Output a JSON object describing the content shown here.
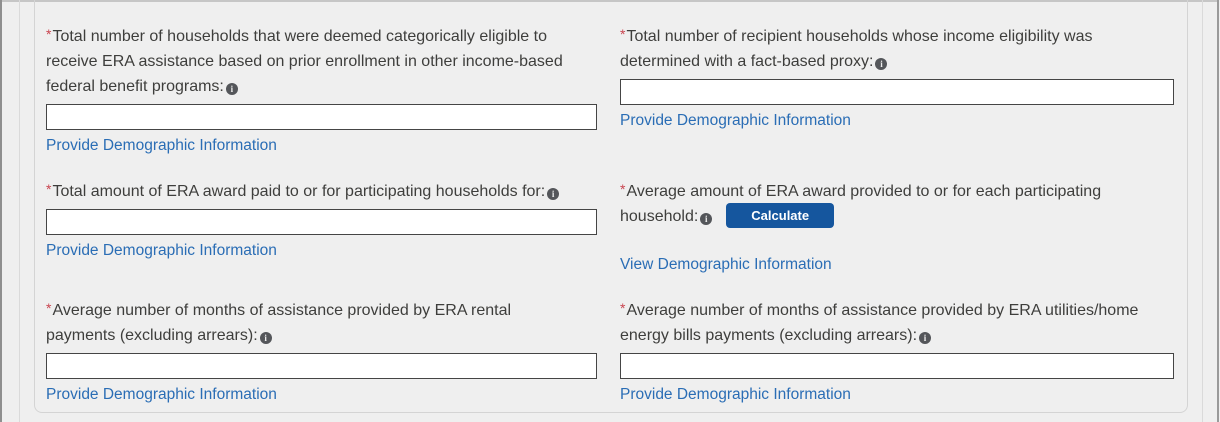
{
  "colors": {
    "page_background": "#efefef",
    "panel_border": "#d4d4d4",
    "label_text": "#3e3e3c",
    "link_blue": "#2a6db5",
    "required_red": "#c9444f",
    "button_blue": "#15569e",
    "input_border": "#454545",
    "info_icon_bg": "#54565a"
  },
  "icons": {
    "info_glyph": "i"
  },
  "required_marker": "*",
  "fields": {
    "cat_eligible": {
      "label": "Total number of households that were deemed categorically eligible to receive ERA assistance based on prior enrollment in other income-based federal benefit programs:",
      "value": "",
      "link": "Provide Demographic Information"
    },
    "fact_proxy": {
      "label": "Total number of recipient households whose income eligibility was determined with a fact-based proxy:",
      "value": "",
      "link": "Provide Demographic Information"
    },
    "total_amount": {
      "label": "Total amount of ERA award paid to or for participating households for:",
      "value": "",
      "link": "Provide Demographic Information"
    },
    "average_amount": {
      "label": "Average amount of ERA award provided to or for each participating household:",
      "button": "Calculate",
      "link": "View Demographic Information"
    },
    "avg_months_rental": {
      "label": "Average number of months of assistance provided by ERA rental payments (excluding arrears):",
      "value": "",
      "link": "Provide Demographic Information"
    },
    "avg_months_utilities": {
      "label": "Average number of months of assistance provided by ERA utilities/home energy bills payments (excluding arrears):",
      "value": "",
      "link": "Provide Demographic Information"
    }
  }
}
